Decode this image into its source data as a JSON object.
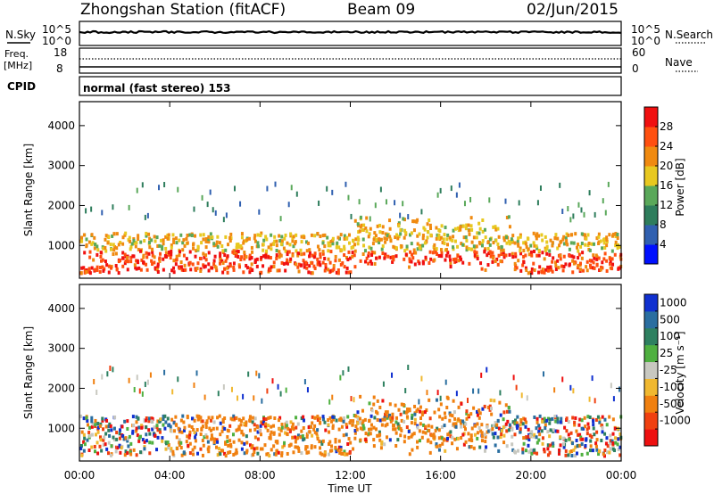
{
  "header": {
    "station": "Zhongshan Station (fitACF)",
    "beam": "Beam 09",
    "date": "02/Jun/2015"
  },
  "strip_noise": {
    "left_label": "N.Sky",
    "left_ticks": [
      "10^5",
      "10^0"
    ],
    "right_label": "N.Search",
    "right_ticks": [
      "10^5",
      "10^0"
    ]
  },
  "strip_freq": {
    "left_label_1": "Freq.",
    "left_label_2": "[MHz]",
    "left_ticks": [
      "18",
      "8"
    ],
    "right_label": "Nave",
    "right_ticks": [
      "60",
      "0"
    ]
  },
  "strip_cpid": {
    "label": "CPID",
    "text": "normal (fast stereo) 153"
  },
  "chart_data": [
    {
      "type": "heatmap",
      "quantity": "Power",
      "ylabel": "Slant Range [km]",
      "xlabel": "Time UT",
      "ylim": [
        180,
        4600
      ],
      "yticks": [
        "1000",
        "2000",
        "3000",
        "4000"
      ],
      "ytick_values": [
        1000,
        2000,
        3000,
        4000
      ],
      "colorbar": {
        "label": "Power [dB]",
        "ticks": [
          "4",
          "8",
          "12",
          "16",
          "20",
          "24",
          "28"
        ],
        "range": [
          0,
          32
        ],
        "colors": [
          "#0010ff",
          "#3060b0",
          "#2e7d5c",
          "#5aa85a",
          "#e8c820",
          "#f08a10",
          "#ff5010",
          "#f01010"
        ]
      }
    },
    {
      "type": "heatmap",
      "quantity": "Velocity",
      "ylabel": "Slant Range [km]",
      "xlabel": "Time UT",
      "ylim": [
        180,
        4600
      ],
      "yticks": [
        "1000",
        "2000",
        "3000",
        "4000"
      ],
      "ytick_values": [
        1000,
        2000,
        3000,
        4000
      ],
      "colorbar": {
        "label": "Velocity [m s⁻¹]",
        "ticks": [
          "1000",
          "500",
          "100",
          "25",
          "-25",
          "-100",
          "-500",
          "-1000"
        ],
        "colors": [
          "#1030d0",
          "#2a6ea0",
          "#2e8060",
          "#4fb040",
          "#c8c8c0",
          "#f0b830",
          "#f08010",
          "#f04010",
          "#ee1010"
        ]
      }
    }
  ],
  "x_axis": {
    "label": "Time UT",
    "ticks": [
      "00:00",
      "04:00",
      "08:00",
      "12:00",
      "16:00",
      "20:00",
      "00:00"
    ],
    "range_hours": [
      0,
      24
    ]
  }
}
